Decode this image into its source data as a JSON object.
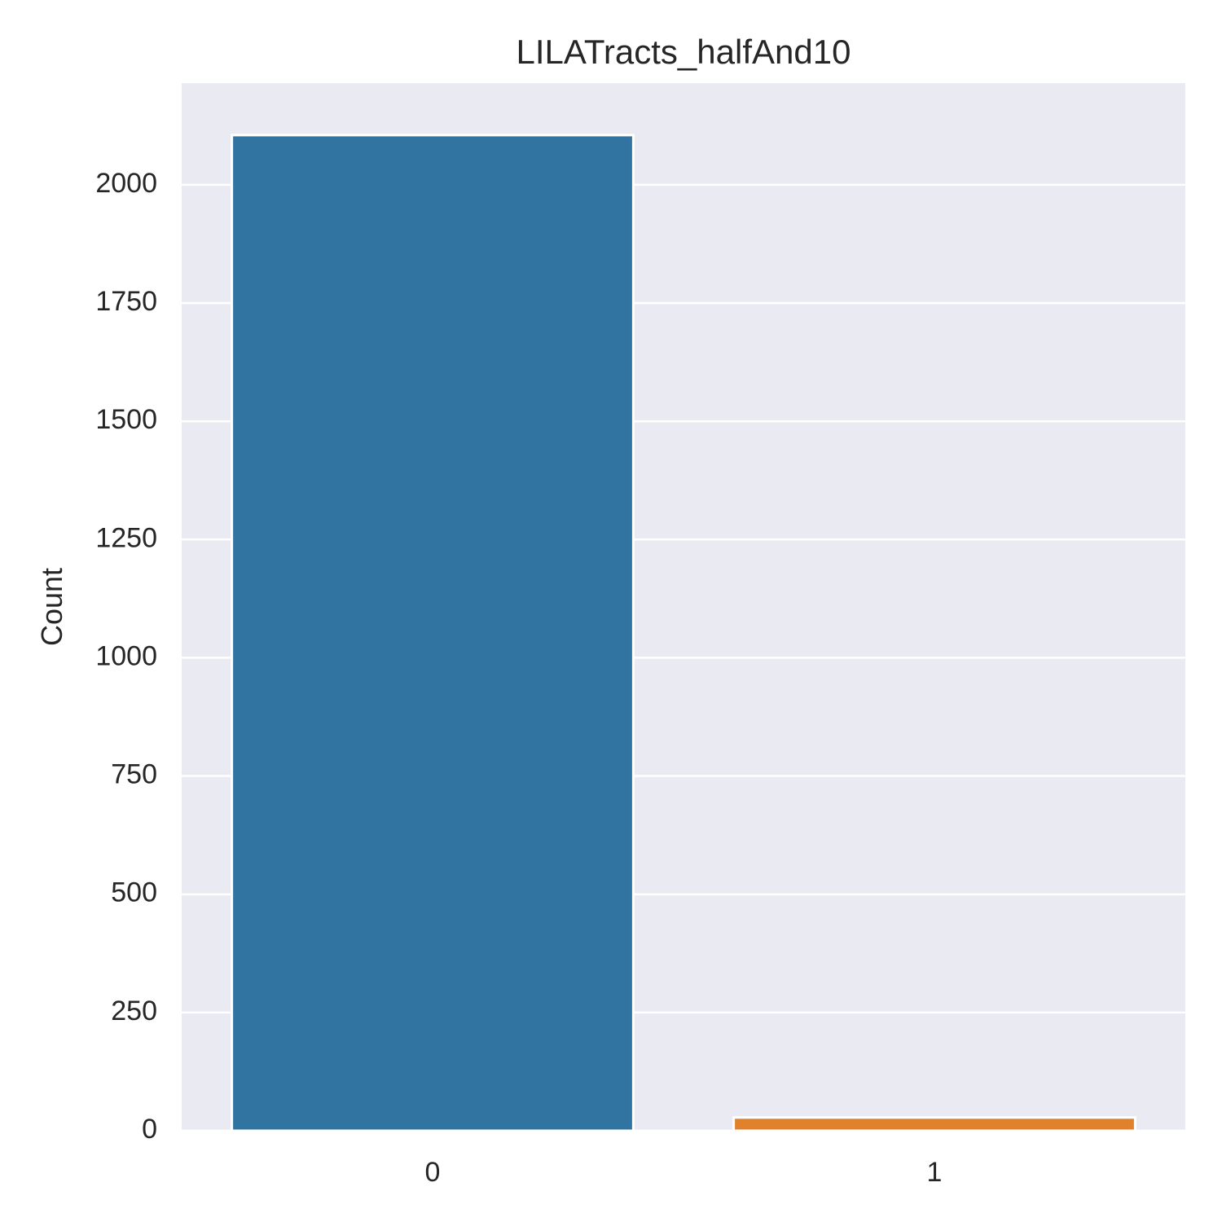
{
  "chart_data": {
    "type": "bar",
    "title": "LILATracts_halfAnd10",
    "xlabel": "",
    "ylabel": "Count",
    "categories": [
      "0",
      "1"
    ],
    "values": [
      2105,
      28
    ],
    "bar_colors": [
      "#3274a1",
      "#e1812c"
    ],
    "ylim": [
      0,
      2215
    ],
    "yticks": [
      0,
      250,
      500,
      750,
      1000,
      1250,
      1500,
      1750,
      2000
    ],
    "ytick_labels": [
      "0",
      "250",
      "500",
      "750",
      "1000",
      "1250",
      "1500",
      "1750",
      "2000"
    ],
    "grid": true,
    "legend": "none",
    "style": {
      "plot_background": "#eaeaf2",
      "grid_color": "#ffffff",
      "text_color": "#262626",
      "bar_edge_color": "#ffffff"
    }
  }
}
